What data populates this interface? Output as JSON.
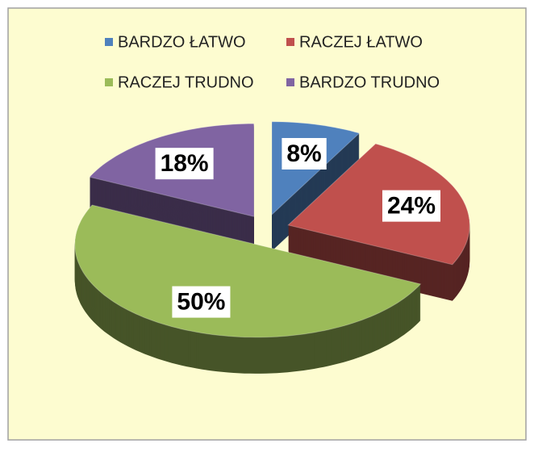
{
  "chart_data": {
    "type": "pie",
    "categories": [
      "BARDZO ŁATWO",
      "RACZEJ ŁATWO",
      "RACZEJ TRUDNO",
      "BARDZO TRUDNO"
    ],
    "values": [
      8,
      24,
      50,
      18
    ],
    "value_labels": [
      "8%",
      "24%",
      "50%",
      "18%"
    ],
    "colors": [
      "#4f81bd",
      "#c0504d",
      "#9bbb59",
      "#8064a2"
    ],
    "legend": "top"
  }
}
